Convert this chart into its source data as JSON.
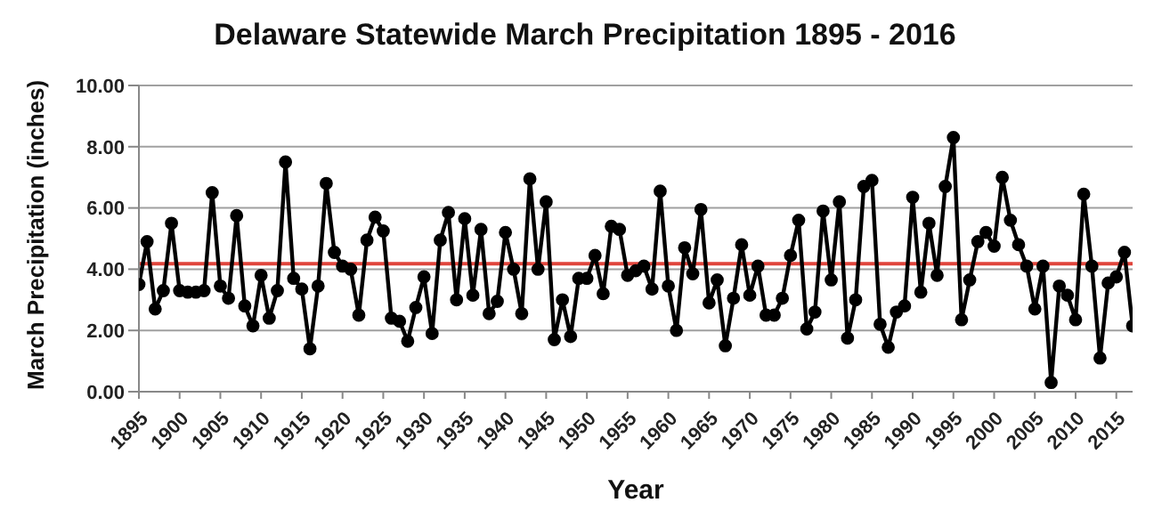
{
  "chart_data": {
    "type": "line",
    "title": "Delaware Statewide March Precipitation 1895 - 2016",
    "xlabel": "Year",
    "ylabel": "March Precipitation (inches)",
    "x": [
      1895,
      1896,
      1897,
      1898,
      1899,
      1900,
      1901,
      1902,
      1903,
      1904,
      1905,
      1906,
      1907,
      1908,
      1909,
      1910,
      1911,
      1912,
      1913,
      1914,
      1915,
      1916,
      1917,
      1918,
      1919,
      1920,
      1921,
      1922,
      1923,
      1924,
      1925,
      1926,
      1927,
      1928,
      1929,
      1930,
      1931,
      1932,
      1933,
      1934,
      1935,
      1936,
      1937,
      1938,
      1939,
      1940,
      1941,
      1942,
      1943,
      1944,
      1945,
      1946,
      1947,
      1948,
      1949,
      1950,
      1951,
      1952,
      1953,
      1954,
      1955,
      1956,
      1957,
      1958,
      1959,
      1960,
      1961,
      1962,
      1963,
      1964,
      1965,
      1966,
      1967,
      1968,
      1969,
      1970,
      1971,
      1972,
      1973,
      1974,
      1975,
      1976,
      1977,
      1978,
      1979,
      1980,
      1981,
      1982,
      1983,
      1984,
      1985,
      1986,
      1987,
      1988,
      1989,
      1990,
      1991,
      1992,
      1993,
      1994,
      1995,
      1996,
      1997,
      1998,
      1999,
      2000,
      2001,
      2002,
      2003,
      2004,
      2005,
      2006,
      2007,
      2008,
      2009,
      2010,
      2011,
      2012,
      2013,
      2014,
      2015,
      2016,
      2017
    ],
    "series": [
      {
        "color": "#000000",
        "values": [
          3.5,
          4.9,
          2.7,
          3.3,
          5.5,
          3.3,
          3.25,
          3.25,
          3.3,
          6.5,
          3.45,
          3.05,
          5.75,
          2.8,
          2.15,
          3.8,
          2.4,
          3.3,
          7.5,
          3.7,
          3.35,
          1.4,
          3.45,
          6.8,
          4.55,
          4.1,
          4.0,
          2.5,
          4.95,
          5.7,
          5.25,
          2.4,
          2.3,
          1.65,
          2.75,
          3.75,
          1.9,
          4.95,
          5.85,
          3.0,
          5.65,
          3.15,
          5.3,
          2.55,
          2.95,
          5.2,
          4.0,
          2.55,
          6.95,
          4.0,
          6.2,
          1.7,
          3.0,
          1.8,
          3.7,
          3.7,
          4.45,
          3.2,
          5.4,
          5.3,
          3.8,
          3.95,
          4.1,
          3.35,
          6.55,
          3.45,
          2.0,
          4.7,
          3.85,
          5.95,
          2.9,
          3.65,
          1.5,
          3.05,
          4.8,
          3.15,
          4.1,
          2.5,
          2.5,
          3.05,
          4.45,
          5.6,
          2.05,
          2.6,
          5.9,
          3.65,
          6.2,
          1.75,
          3.0,
          6.7,
          6.9,
          2.2,
          1.45,
          2.6,
          2.8,
          6.35,
          3.25,
          5.5,
          3.8,
          6.7,
          8.3,
          2.35,
          3.65,
          4.9,
          5.2,
          4.75,
          7.0,
          5.6,
          4.8,
          4.1,
          2.7,
          4.1,
          0.3,
          3.45,
          3.15,
          2.35,
          6.45,
          4.1,
          1.1,
          3.55,
          3.75,
          4.55,
          2.15
        ]
      }
    ],
    "xlim": [
      1895,
      2017
    ],
    "xticks": [
      1895,
      1900,
      1905,
      1910,
      1915,
      1920,
      1925,
      1930,
      1935,
      1940,
      1945,
      1950,
      1955,
      1960,
      1965,
      1970,
      1975,
      1980,
      1985,
      1990,
      1995,
      2000,
      2005,
      2010,
      2015
    ],
    "ylim": [
      0,
      10
    ],
    "yticks": [
      {
        "value": 0,
        "label": "0.00"
      },
      {
        "value": 2,
        "label": "2.00"
      },
      {
        "value": 4,
        "label": "4.00"
      },
      {
        "value": 6,
        "label": "6.00"
      },
      {
        "value": 8,
        "label": "8.00"
      },
      {
        "value": 10,
        "label": "10.00"
      }
    ],
    "grid": "y",
    "marker": "circle",
    "line_style": "solid",
    "ref_lines": [
      {
        "axis": "y",
        "value": 4.18,
        "color": "#e0453c"
      }
    ]
  }
}
